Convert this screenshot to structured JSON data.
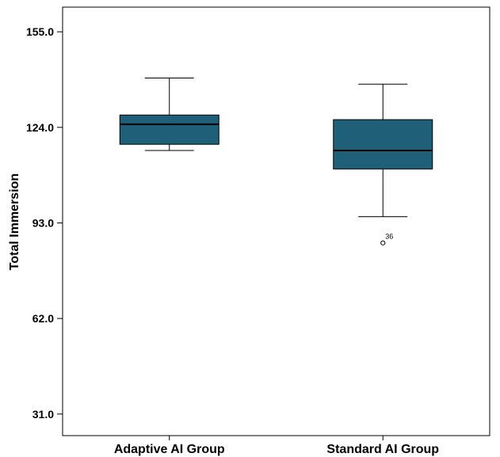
{
  "chart_data": {
    "type": "boxplot",
    "title": "",
    "xlabel": "",
    "ylabel": "Total Immersion",
    "ylim": [
      24,
      163
    ],
    "yticks": [
      "31.0",
      "62.0",
      "93.0",
      "124.0",
      "155.0"
    ],
    "ytick_values": [
      31,
      62,
      93,
      124,
      155
    ],
    "categories": [
      "Adaptive AI Group",
      "Standard AI Group"
    ],
    "box_color": "#1f5f78",
    "grid": false,
    "boxes": [
      {
        "category": "Adaptive AI Group",
        "whisker_low": 116.5,
        "q1": 118.5,
        "median": 125.0,
        "q3": 128.0,
        "whisker_high": 140.0,
        "outliers": []
      },
      {
        "category": "Standard AI Group",
        "whisker_low": 95.0,
        "q1": 110.5,
        "median": 116.5,
        "q3": 126.5,
        "whisker_high": 138.0,
        "outliers": [
          {
            "value": 86.5,
            "label": "36"
          }
        ]
      }
    ]
  }
}
